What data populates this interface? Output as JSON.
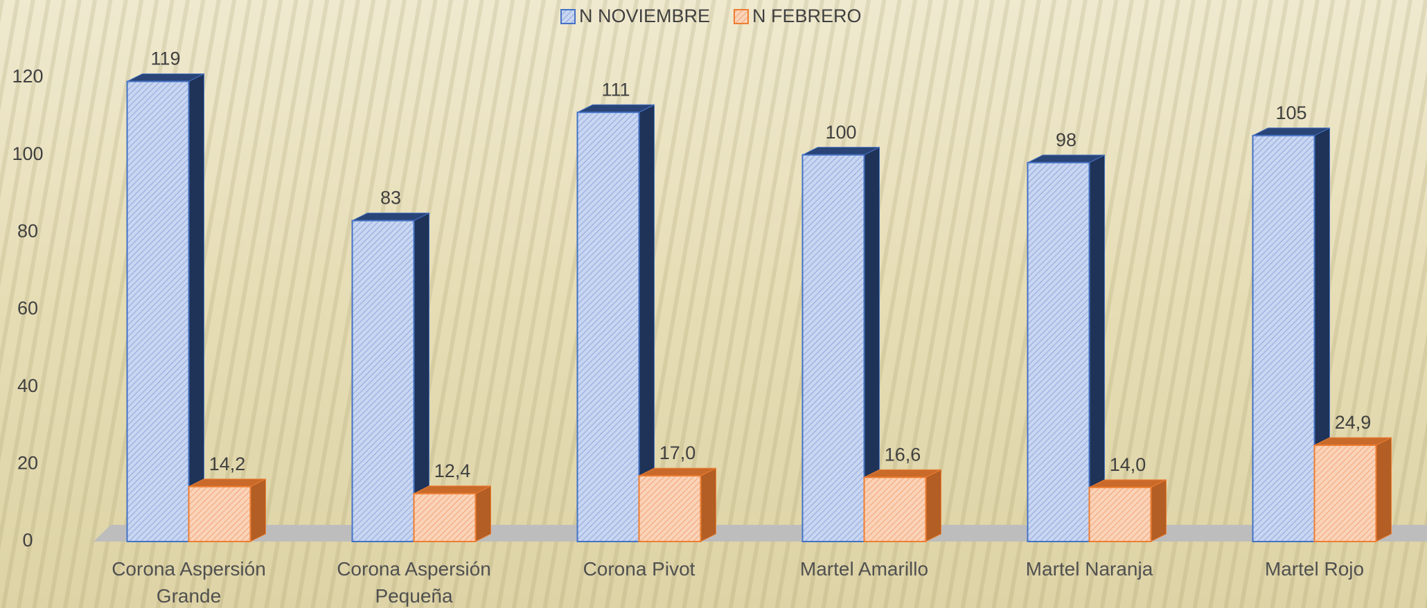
{
  "chart_data": {
    "type": "bar3d",
    "categories": [
      "Corona Aspersión Grande",
      "Corona Aspersión Pequeña",
      "Corona Pivot",
      "Martel Amarillo",
      "Martel Naranja",
      "Martel Rojo"
    ],
    "series": [
      {
        "name": "N NOVIEMBRE",
        "color": "#4472c4",
        "values": [
          119,
          83,
          111,
          100,
          98,
          105
        ]
      },
      {
        "name": "N FEBRERO",
        "color": "#ed7d31",
        "values": [
          14.2,
          12.4,
          17.0,
          16.6,
          14.0,
          24.9
        ],
        "value_labels": [
          "14,2",
          "12,4",
          "17,0",
          "16,6",
          "14,0",
          "24,9"
        ]
      }
    ],
    "ylim": [
      0,
      120
    ],
    "yticks": [
      0,
      20,
      40,
      60,
      80,
      100,
      120
    ],
    "grid": false,
    "legend": "top"
  }
}
